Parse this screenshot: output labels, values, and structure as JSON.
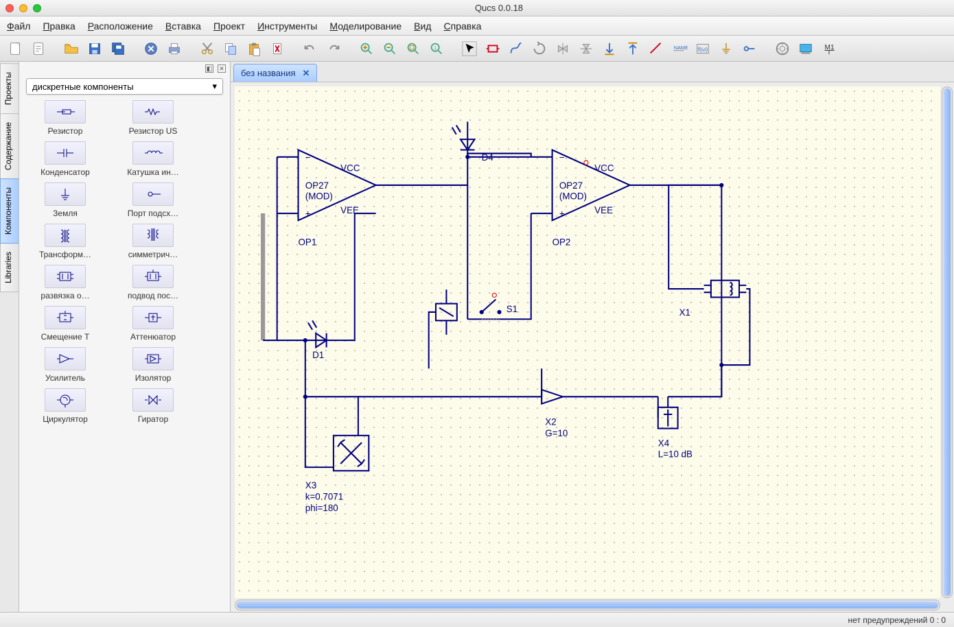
{
  "title": "Qucs 0.0.18",
  "traffic_colors": [
    "#ff5f57",
    "#febc2e",
    "#28c840"
  ],
  "menu": [
    "Файл",
    "Правка",
    "Расположение",
    "Вставка",
    "Проект",
    "Инструменты",
    "Моделирование",
    "Вид",
    "Справка"
  ],
  "toolbar_icons": [
    {
      "name": "new-file-icon",
      "svg": "<rect x='6' y='4' width='14' height='18' rx='1' fill='#fff' stroke='#888'/><path d='M14 4h6v6' fill='#eee' stroke='#888'/>"
    },
    {
      "name": "new-text-icon",
      "svg": "<rect x='6' y='4' width='14' height='18' rx='1' fill='#fff' stroke='#888'/><path d='M9 9h8M9 13h8M9 17h5' stroke='#888'/>"
    },
    {
      "name": "sep"
    },
    {
      "name": "open-icon",
      "svg": "<path d='M3 8h8l2 3h10v9H3z' fill='#f6c044' stroke='#b88a1e'/><path d='M3 8V6h6l2 2' fill='#f6c044' stroke='#b88a1e'/>"
    },
    {
      "name": "save-icon",
      "svg": "<rect x='5' y='5' width='16' height='16' fill='#3a6fc4' stroke='#244a8a'/><rect x='8' y='5' width='10' height='6' fill='#fff'/><rect x='9' y='15' width='8' height='6' fill='#bcd3ff'/>"
    },
    {
      "name": "save-all-icon",
      "svg": "<rect x='4' y='4' width='14' height='14' fill='#3a6fc4' stroke='#244a8a'/><rect x='8' y='8' width='14' height='14' fill='#3a6fc4' stroke='#244a8a'/><rect x='10' y='8' width='8' height='5' fill='#fff'/>"
    },
    {
      "name": "sep"
    },
    {
      "name": "close-icon",
      "svg": "<circle cx='13' cy='13' r='9' fill='#5b7fbf' stroke='#3a5a9a'/><path d='M9 9l8 8M17 9l-8 8' stroke='#fff' stroke-width='2'/>"
    },
    {
      "name": "print-icon",
      "svg": "<rect x='5' y='11' width='16' height='8' fill='#8aa5d6' stroke='#5b7fbf'/><rect x='8' y='5' width='10' height='6' fill='#fff' stroke='#888'/><rect x='8' y='17' width='10' height='4' fill='#fff' stroke='#888'/>"
    },
    {
      "name": "sep"
    },
    {
      "name": "cut-icon",
      "svg": "<circle cx='8' cy='18' r='3' fill='none' stroke='#c9a14a' stroke-width='2'/><circle cx='18' cy='18' r='3' fill='none' stroke='#c9a14a' stroke-width='2'/><path d='M10 16L20 4M16 16L6 4' stroke='#888' stroke-width='2'/>"
    },
    {
      "name": "copy-icon",
      "svg": "<rect x='5' y='5' width='11' height='13' fill='#fff' stroke='#888'/><rect x='10' y='9' width='11' height='13' fill='#bcd3ff' stroke='#5b7fbf'/>"
    },
    {
      "name": "paste-icon",
      "svg": "<rect x='6' y='6' width='14' height='16' fill='#e8b04a' stroke='#b88a1e'/><rect x='10' y='4' width='6' height='4' fill='#888'/><rect x='12' y='12' width='10' height='12' fill='#fff' stroke='#888'/>"
    },
    {
      "name": "delete-icon",
      "svg": "<rect x='7' y='5' width='12' height='16' fill='#fff' stroke='#888'/><path d='M10 8l6 10M16 8l-6 10' stroke='#d0021b' stroke-width='2'/>"
    },
    {
      "name": "sep"
    },
    {
      "name": "undo-icon",
      "svg": "<path d='M18 14a6 6 0 0 0-10-4L5 13' fill='none' stroke='#888' stroke-width='2'/><path d='M5 8v5h5' fill='none' stroke='#888' stroke-width='2'/>"
    },
    {
      "name": "redo-icon",
      "svg": "<path d='M8 14a6 6 0 0 1 10-4l3 3' fill='none' stroke='#888' stroke-width='2'/><path d='M21 8v5h-5' fill='none' stroke='#888' stroke-width='2'/>"
    },
    {
      "name": "sep"
    },
    {
      "name": "zoom-in-icon",
      "svg": "<circle cx='11' cy='11' r='6' fill='none' stroke='#4a8' stroke-width='2'/><path d='M16 16l5 5' stroke='#4a8' stroke-width='2'/><path d='M11 8v6M8 11h6' stroke='#c80' stroke-width='2'/>"
    },
    {
      "name": "zoom-out-icon",
      "svg": "<circle cx='11' cy='11' r='6' fill='none' stroke='#4a8' stroke-width='2'/><path d='M16 16l5 5' stroke='#4a8' stroke-width='2'/><path d='M8 11h6' stroke='#c80' stroke-width='2'/>"
    },
    {
      "name": "zoom-fit-icon",
      "svg": "<circle cx='11' cy='11' r='6' fill='none' stroke='#4a8' stroke-width='2'/><path d='M16 16l5 5' stroke='#4a8' stroke-width='2'/><rect x='8' y='8' width='6' height='6' fill='none' stroke='#c80'/>"
    },
    {
      "name": "zoom-1-icon",
      "svg": "<circle cx='11' cy='11' r='6' fill='none' stroke='#4a8' stroke-width='2'/><path d='M16 16l5 5' stroke='#4a8' stroke-width='2'/><text x='11' y='14' font-size='8' text-anchor='middle' fill='#c80'>1</text>"
    },
    {
      "name": "sep"
    },
    {
      "name": "select-icon",
      "svg": "<rect x='2' y='2' width='22' height='22' fill='none' stroke='#aaa'/><path d='M8 6l4 12 2-5 5-2z' fill='#000' stroke='#000'/>"
    },
    {
      "name": "component-icon",
      "svg": "<rect x='6' y='8' width='14' height='10' fill='none' stroke='#d0021b' stroke-width='2'/><path d='M3 13h3M20 13h3' stroke='#d0021b' stroke-width='2'/>"
    },
    {
      "name": "wire-icon",
      "svg": "<path d='M5 20c0-8 4-8 8-8s4-8 8-8' fill='none' stroke='#3a6fc4' stroke-width='2'/>"
    },
    {
      "name": "rotate-icon",
      "svg": "<path d='M13 5a8 8 0 1 1-8 8' fill='none' stroke='#888' stroke-width='2'/><path d='M10 2l3 3-3 3' fill='none' stroke='#888' stroke-width='2'/>"
    },
    {
      "name": "mirror-h-icon",
      "svg": "<path d='M13 4v18M6 8l7 5-7 5zM20 8l-7 5 7 5z' fill='#888' fill-opacity='.3' stroke='#888'/>"
    },
    {
      "name": "mirror-v-icon",
      "svg": "<path d='M4 13h18M8 6l5 7 5-7zM8 20l5-7 5 7z' fill='#888' fill-opacity='.3' stroke='#888'/>"
    },
    {
      "name": "move-down-icon",
      "svg": "<path d='M13 4v14M8 14l5 5 5-5' fill='none' stroke='#3a6fc4' stroke-width='2'/><path d='M6 22h14' stroke='#c80' stroke-width='2'/>"
    },
    {
      "name": "move-up-icon",
      "svg": "<path d='M13 22V8M8 12l5-5 5 5' fill='none' stroke='#3a6fc4' stroke-width='2'/><path d='M6 4h14' stroke='#c80' stroke-width='2'/>"
    },
    {
      "name": "wire-tool-icon",
      "svg": "<path d='M4 20L20 4' stroke='#d0021b' stroke-width='2'/>"
    },
    {
      "name": "label-icon",
      "svg": "<text x='4' y='14' font-size='8' fill='#3a6fc4'>NAME</text><path d='M4 16h16' stroke='#888'/>"
    },
    {
      "name": "equation-icon",
      "svg": "<rect x='4' y='6' width='18' height='14' fill='none' stroke='#888'/><text x='13' y='17' font-size='9' text-anchor='middle' fill='#3a6fc4'>f(ω)</text>"
    },
    {
      "name": "ground-icon",
      "svg": "<path d='M13 4v10M7 14h12M9 17h8M11 20h4' stroke='#c9a14a' stroke-width='2'/>"
    },
    {
      "name": "port-icon",
      "svg": "<circle cx='8' cy='13' r='3' fill='none' stroke='#3a6fc4' stroke-width='2'/><path d='M11 13h10' stroke='#3a6fc4' stroke-width='2'/>"
    },
    {
      "name": "sep"
    },
    {
      "name": "simulate-icon",
      "svg": "<circle cx='13' cy='13' r='9' fill='none' stroke='#888' stroke-width='2'/><circle cx='13' cy='13' r='4' fill='none' stroke='#888'/><path d='M13 4v3M13 19v3M4 13h3M19 13h3' stroke='#888'/>"
    },
    {
      "name": "display-icon",
      "svg": "<rect x='4' y='6' width='18' height='12' fill='#4ab4e8' stroke='#2a7aa8'/><path d='M6 20h14' stroke='#888' stroke-width='2'/>"
    },
    {
      "name": "marker-icon",
      "svg": "<text x='6' y='14' font-size='11' fill='#333' text-decoration='underline'>M1</text><path d='M13 16v6' stroke='#333'/>"
    }
  ],
  "sidetabs": [
    {
      "label": "Проекты",
      "active": false
    },
    {
      "label": "Содержание",
      "active": false
    },
    {
      "label": "Компоненты",
      "active": true
    },
    {
      "label": "Libraries",
      "active": false
    }
  ],
  "combo_value": "дискретные компоненты",
  "components": [
    {
      "label": "Резистор",
      "svg": "<path d='M4 12h8m0 0h4m-4-3h12v6h-12zM24 12h6' stroke='#000080' fill='none'/>"
    },
    {
      "label": "Резистор US",
      "svg": "<path d='M4 12h4l2-4 3 8 3-8 3 8 2-4h5' stroke='#000080' fill='none'/>"
    },
    {
      "label": "Конденсатор",
      "svg": "<path d='M4 12h10M14 6v12M18 6v12M18 12h10' stroke='#000080' fill='none'/>"
    },
    {
      "label": "Катушка ин…",
      "svg": "<path d='M4 12h4a3 3 0 0 1 6 0a3 3 0 0 1 6 0a3 3 0 0 1 6 0h4' stroke='#000080' fill='none'/>"
    },
    {
      "label": "Земля",
      "svg": "<path d='M16 4v10M10 14h12M12 17h8M14 20h4' stroke='#000080' fill='none'/>"
    },
    {
      "label": "Порт подсх…",
      "svg": "<circle cx='12' cy='12' r='3' stroke='#000080' fill='none'/><path d='M15 12h12' stroke='#000080'/>"
    },
    {
      "label": "Трансформ…",
      "svg": "<path d='M10 4a3 3 0 0 1 0 6a3 3 0 0 1 0 6a3 3 0 0 1 0 6M22 4a3 3 0 0 0 0 6a3 3 0 0 0 0 6a3 3 0 0 0 0 6M15 4v18M17 4v18' stroke='#000080' fill='none'/>"
    },
    {
      "label": "симметрич…",
      "svg": "<path d='M8 4a3 3 0 0 1 0 6a3 3 0 0 1 0 6M24 4a3 3 0 0 0 0 6a3 3 0 0 0 0 6M14 2v18M16 2v18M18 2v18' stroke='#000080' fill='none'/>"
    },
    {
      "label": "развязка о…",
      "svg": "<rect x='8' y='6' width='16' height='12' stroke='#000080' fill='none'/><path d='M4 9h4M4 15h4M24 9h4M24 15h4M12 8v8M20 8v8' stroke='#000080' fill='none'/>"
    },
    {
      "label": "подвод пос…",
      "svg": "<rect x='8' y='6' width='16' height='12' stroke='#000080' fill='none'/><path d='M4 12h4M24 12h4M16 6v-4M12 8v8M20 8v8' stroke='#000080' fill='none'/>"
    },
    {
      "label": "Смещение Т",
      "svg": "<rect x='8' y='6' width='16' height='12' stroke='#000080' fill='none'/><path d='M4 12h4M24 12h4M16 6v-4M14 9h4M14 15h4' stroke='#000080' fill='none'/>"
    },
    {
      "label": "Аттенюатор",
      "svg": "<rect x='10' y='6' width='12' height='12' stroke='#000080' fill='none'/><path d='M4 12h6M22 12h6M16 8v8M13 11h6' stroke='#000080' fill='none'/>"
    },
    {
      "label": "Усилитель",
      "svg": "<path d='M8 6v12l14-6zM4 12h4M22 12h6' stroke='#000080' fill='none'/>"
    },
    {
      "label": "Изолятор",
      "svg": "<rect x='8' y='6' width='16' height='12' stroke='#000080' fill='none'/><path d='M4 12h4M24 12h4M12 8l8 4-8 4z' stroke='#000080' fill='none'/>"
    },
    {
      "label": "Циркулятор",
      "svg": "<circle cx='16' cy='12' r='7' stroke='#000080' fill='none'/><path d='M4 12h5M23 12h5M16 19v4M13 9a4 4 0 0 1 6 4' stroke='#000080' fill='none'/>"
    },
    {
      "label": "Гиратор",
      "svg": "<path d='M4 12h4M24 12h4M10 6v12l6-6zM22 6v12l-6-6z' stroke='#000080' fill='none'/>"
    }
  ],
  "doctab": {
    "label": "без названия",
    "close": "✕"
  },
  "canvas": {
    "background": "#fdfbea",
    "wire_color": "#000080",
    "dot_color": "#777",
    "labels": {
      "op1": {
        "name": "OP1",
        "model": "OP27",
        "sub": "(MOD)",
        "vcc": "VCC",
        "vee": "VEE"
      },
      "op2": {
        "name": "OP2",
        "model": "OP27",
        "sub": "(MOD)",
        "vcc": "VCC",
        "vee": "VEE"
      },
      "d1": "D1",
      "d4": "D4",
      "s1": "S1",
      "x1": "X1",
      "x2": {
        "name": "X2",
        "g": "G=10"
      },
      "x3": {
        "name": "X3",
        "k": "k=0.7071",
        "phi": "phi=180"
      },
      "x4": {
        "name": "X4",
        "l": "L=10 dB"
      }
    }
  },
  "status": "нет предупреждений  0 : 0"
}
